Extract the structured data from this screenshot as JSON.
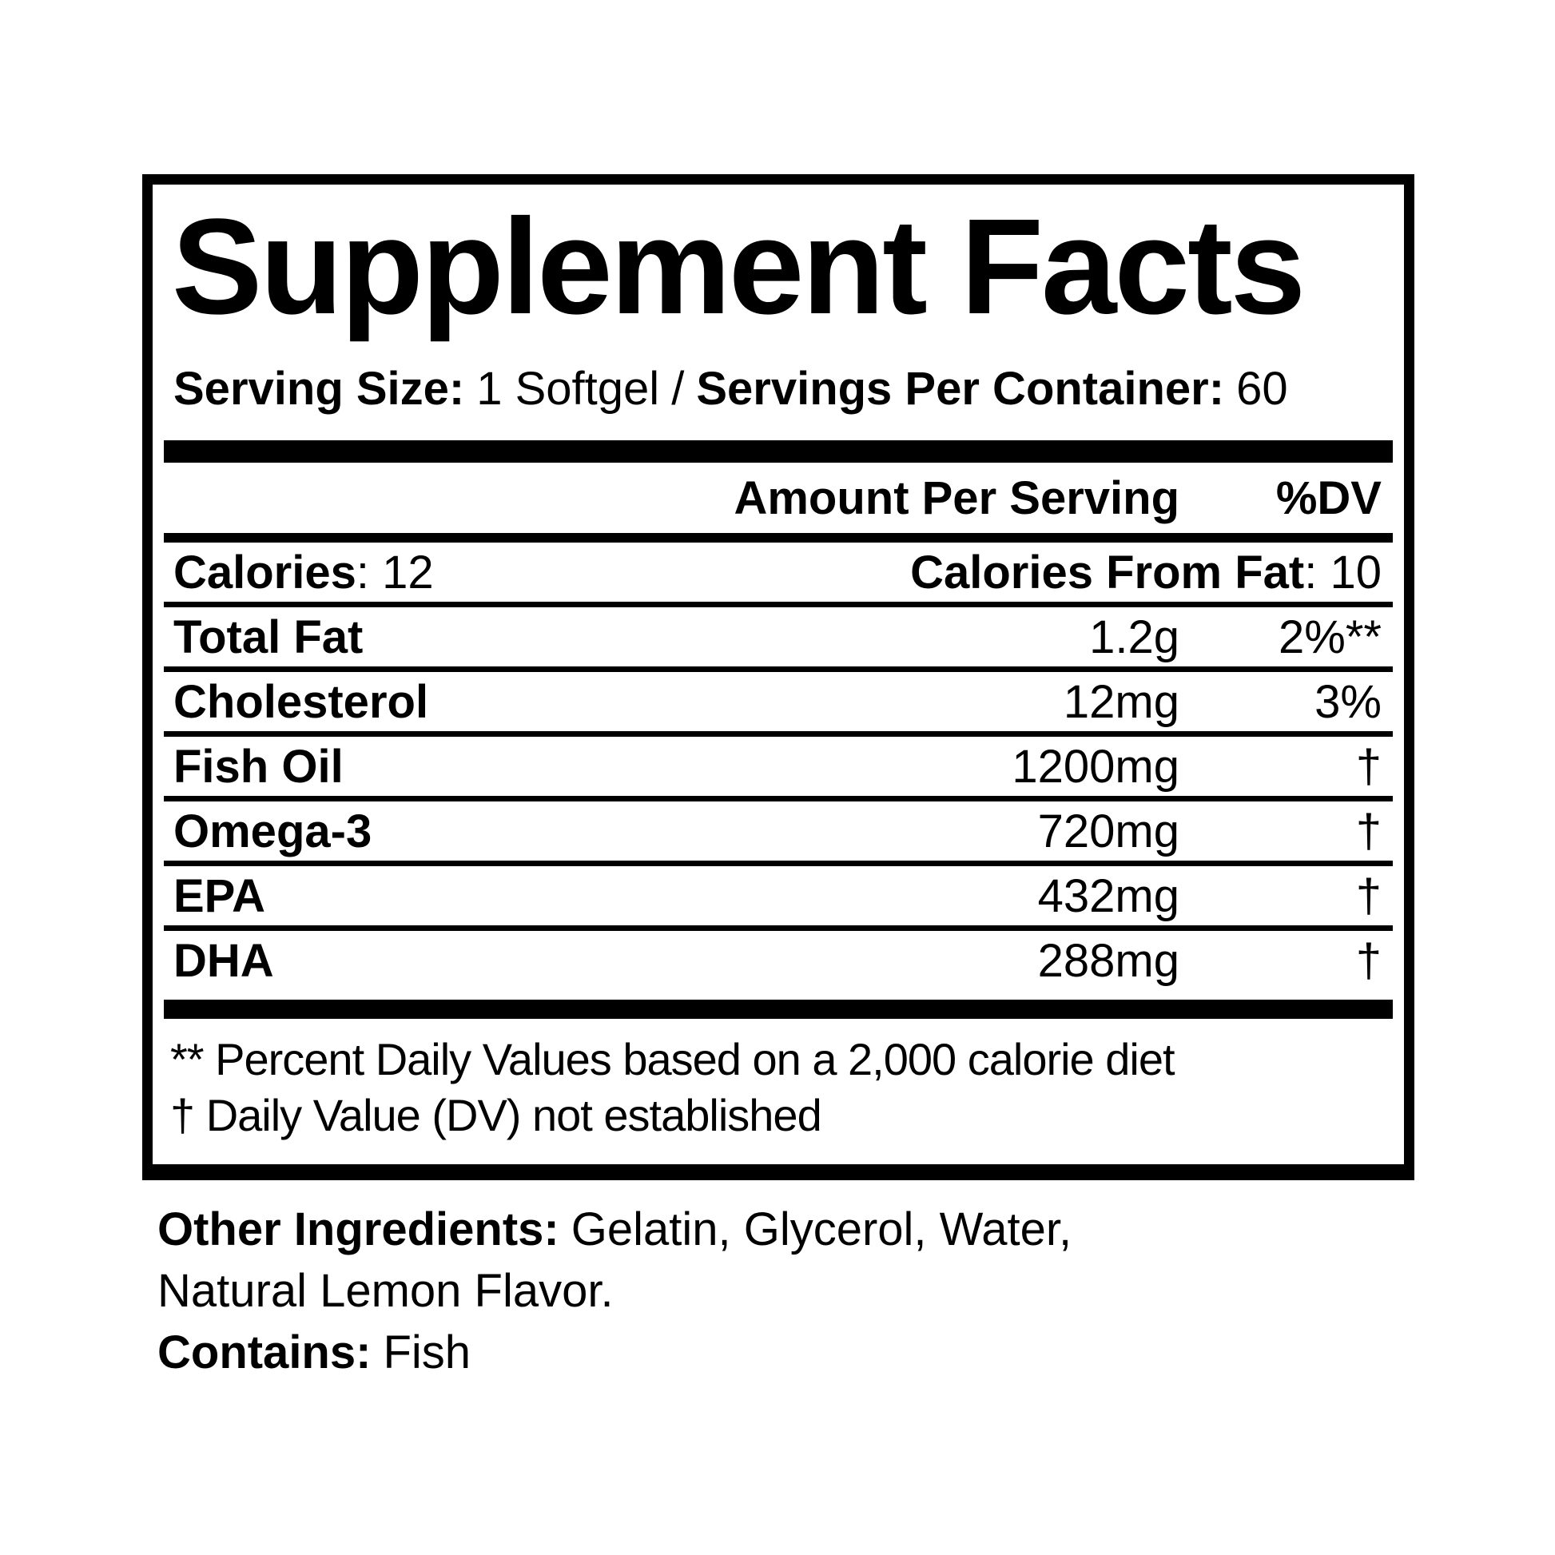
{
  "label": {
    "title": "Supplement Facts",
    "serving": {
      "size_label": "Serving Size:",
      "size_value": "1 Softgel",
      "divider": "/",
      "container_label": "Servings Per Container:",
      "container_value": "60"
    },
    "header": {
      "amount": "Amount Per Serving",
      "dv": "%DV"
    },
    "calories_row": {
      "label": "Calories",
      "value": ": 12",
      "right_label": "Calories From Fat",
      "right_value": ": 10"
    },
    "rows": [
      {
        "label": "Total Fat",
        "amount": "1.2g",
        "dv": "2%**"
      },
      {
        "label": "Cholesterol",
        "amount": "12mg",
        "dv": "3%"
      },
      {
        "label": "Fish Oil",
        "amount": "1200mg",
        "dv": "†"
      },
      {
        "label": "Omega-3",
        "amount": "720mg",
        "dv": "†"
      },
      {
        "label": "EPA",
        "amount": "432mg",
        "dv": "†"
      },
      {
        "label": "DHA",
        "amount": "288mg",
        "dv": "†"
      }
    ],
    "footnotes": [
      "** Percent Daily Values based on a 2,000 calorie diet",
      "† Daily Value (DV) not established"
    ]
  },
  "other": {
    "ingredients_label": "Other Ingredients:",
    "ingredients_line1": "Gelatin, Glycerol, Water,",
    "ingredients_line2": "Natural Lemon Flavor.",
    "contains_label": "Contains:",
    "contains_value": "Fish"
  },
  "colors": {
    "foreground": "#000000",
    "background": "#ffffff"
  }
}
